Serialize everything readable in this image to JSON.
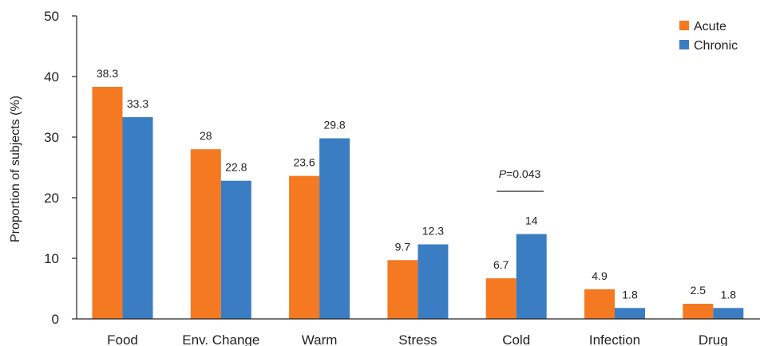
{
  "chart_data": {
    "type": "bar",
    "categories": [
      "Food",
      "Env. Change",
      "Warm",
      "Stress",
      "Cold",
      "Infection",
      "Drug"
    ],
    "series": [
      {
        "name": "Acute",
        "color": "#F47920",
        "values": [
          38.3,
          28,
          23.6,
          9.7,
          6.7,
          4.9,
          2.5
        ],
        "labels": [
          "38.3",
          "28",
          "23.6",
          "9.7",
          "6.7",
          "4.9",
          "2.5"
        ]
      },
      {
        "name": "Chronic",
        "color": "#3A7DC3",
        "values": [
          33.3,
          22.8,
          29.8,
          12.3,
          14,
          1.8,
          1.8
        ],
        "labels": [
          "33.3",
          "22.8",
          "29.8",
          "12.3",
          "14",
          "1.8",
          "1.8"
        ]
      }
    ],
    "ylabel": "Proportion of subjects (%)",
    "xlabel": "",
    "ylim": [
      0,
      50
    ],
    "yticks": [
      "0",
      "10",
      "20",
      "30",
      "40",
      "50"
    ],
    "legend_position": "top-right",
    "grid": false,
    "annotation": {
      "category": "Cold",
      "p_symbol": "P",
      "p_value": "=0.043"
    }
  }
}
